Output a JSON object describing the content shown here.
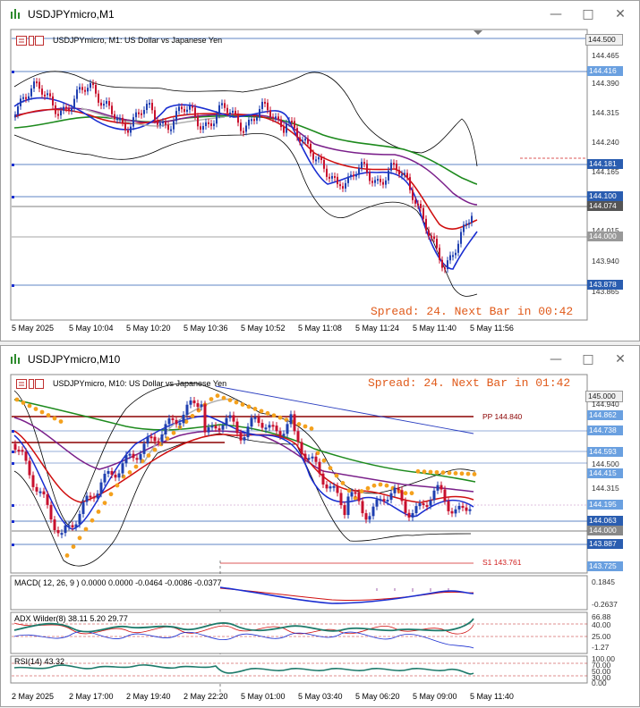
{
  "top_window": {
    "title": "USDJPYmicro,M1",
    "chart_label": "USDJPYmicro, M1:  US Dollar vs Japanese Yen",
    "spread_text": "Spread: 24. Next Bar in 00:42",
    "price_axis": [
      "144.500",
      "144.465",
      "144.416",
      "144.390",
      "144.315",
      "144.240",
      "144.181",
      "144.165",
      "144.100",
      "144.074",
      "144.015",
      "144.000",
      "143.940",
      "143.878",
      "143.865"
    ],
    "highlight_prices": {
      "p1": "144.500",
      "p2": "144.416",
      "p3": "144.181",
      "p4": "144.100",
      "p5": "144.074",
      "p6": "144.000",
      "p7": "143.878"
    },
    "time_axis": [
      "5 May 2025",
      "5 May 10:04",
      "5 May 10:20",
      "5 May 10:36",
      "5 May 10:52",
      "5 May 11:08",
      "5 May 11:24",
      "5 May 11:40",
      "5 May 11:56"
    ]
  },
  "bottom_window": {
    "title": "USDJPYmicro,M10",
    "chart_label": "USDJPYmicro, M10:  US Dollar vs Japanese Yen",
    "spread_text": "Spread: 24. Next Bar in 01:42",
    "pivot_pp": "PP 144.840",
    "pivot_s1": "S1 143.761",
    "price_axis": [
      "145.000",
      "144.940",
      "144.862",
      "144.738",
      "144.593",
      "144.500",
      "144.415",
      "144.315",
      "144.195",
      "144.063",
      "144.000",
      "143.887",
      "143.725"
    ],
    "macd_label": "MACD( 12, 26, 9 )  0.0000  0.0000  -0.0464  -0.0086  -0.0377",
    "macd_axis": [
      "0.1845",
      "-0.2637"
    ],
    "adx_label": "ADX Wilder(8)  38.11  5.20  29.77",
    "adx_axis": [
      "66.88",
      "40.00",
      "25.00",
      "-1.27"
    ],
    "rsi_label": "RSI(14)  43.32",
    "rsi_axis": [
      "100.00",
      "70.00",
      "50.00",
      "30.00",
      "0.00"
    ],
    "time_axis": [
      "2 May 2025",
      "2 May 17:00",
      "2 May 19:40",
      "2 May 22:20",
      "5 May 01:00",
      "5 May 03:40",
      "5 May 06:20",
      "5 May 09:00",
      "5 May 11:40"
    ]
  },
  "colors": {
    "candle_up": "#1f3fb0",
    "candle_down": "#c8102e",
    "ma_fast": "#1a2ed1",
    "ma_mid": "#d01010",
    "ma_slow": "#7a1f8a",
    "ma_long": "#1d8a1d",
    "bands": "#000000",
    "sar": "#f4a11d",
    "spread_text": "#e05a1a"
  }
}
